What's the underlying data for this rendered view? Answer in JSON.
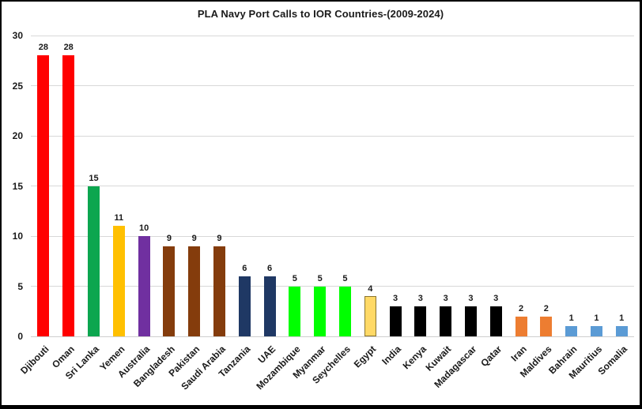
{
  "chart_data": {
    "type": "bar",
    "title": "PLA Navy Port Calls to IOR Countries-(2009-2024)",
    "xlabel": "",
    "ylabel": "",
    "ylim": [
      0,
      30
    ],
    "yticks": [
      0,
      5,
      10,
      15,
      20,
      25,
      30
    ],
    "grid": true,
    "legend": false,
    "data_labels": true,
    "categories": [
      "Djibouti",
      "Oman",
      "Sri Lanka",
      "Yemen",
      "Australia",
      "Bangladesh",
      "Pakistan",
      "Saudi Arabia",
      "Tanzania",
      "UAE",
      "Mozambique",
      "Myanmar",
      "Seychelles",
      "Egypt",
      "India",
      "Kenya",
      "Kuwait",
      "Madagascar",
      "Qatar",
      "Iran",
      "Maldives",
      "Bahrain",
      "Mauritius",
      "Somalia"
    ],
    "values": [
      28,
      28,
      15,
      11,
      10,
      9,
      9,
      9,
      6,
      6,
      5,
      5,
      5,
      4,
      3,
      3,
      3,
      3,
      3,
      2,
      2,
      1,
      1,
      1
    ],
    "bar_colors": [
      "#FF0000",
      "#FF0000",
      "#0CA64F",
      "#FFC000",
      "#7030A0",
      "#843C0C",
      "#843C0C",
      "#843C0C",
      "#1F3864",
      "#1F3864",
      "#00FF00",
      "#00FF00",
      "#00FF00",
      "#FFD966",
      "#000000",
      "#000000",
      "#000000",
      "#000000",
      "#000000",
      "#ED7D31",
      "#ED7D31",
      "#5B9BD5",
      "#5B9BD5",
      "#5B9BD5"
    ],
    "bar_border_colors": [
      "none",
      "none",
      "none",
      "none",
      "none",
      "none",
      "none",
      "none",
      "none",
      "none",
      "none",
      "none",
      "none",
      "#8a7430",
      "none",
      "none",
      "none",
      "none",
      "none",
      "none",
      "none",
      "none",
      "none",
      "none"
    ],
    "gridline_color": "#d8d8d8",
    "text_color": "#1a1a1a"
  }
}
